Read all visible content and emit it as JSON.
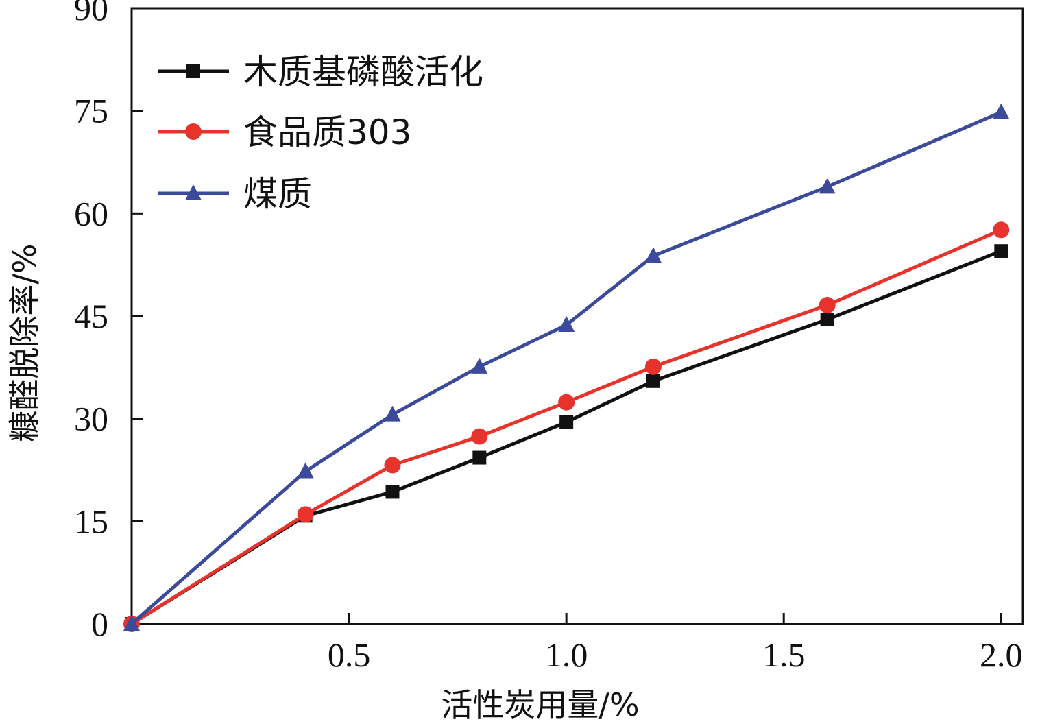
{
  "chart_data": {
    "type": "line",
    "xlabel": "活性炭用量/%",
    "ylabel": "糠醛脱除率/%",
    "xlim": [
      0,
      2.05
    ],
    "ylim": [
      0,
      90
    ],
    "xticks": [
      0.5,
      1.0,
      1.5,
      2.0
    ],
    "xtick_labels": [
      "0.5",
      "1.0",
      "1.5",
      "2.0"
    ],
    "yticks": [
      0,
      15,
      30,
      45,
      60,
      75,
      90
    ],
    "ytick_labels": [
      "0",
      "15",
      "30",
      "45",
      "60",
      "75",
      "90"
    ],
    "legend_position": "top-left",
    "grid": false,
    "x": [
      0,
      0.4,
      0.6,
      0.8,
      1.0,
      1.2,
      1.6,
      2.0
    ],
    "series": [
      {
        "name": "木质基磷酸活化",
        "color": "#111111",
        "marker": "square",
        "values": [
          0,
          15.8,
          19.3,
          24.3,
          29.5,
          35.5,
          44.5,
          54.5
        ]
      },
      {
        "name": "食品质303",
        "color": "#e8322c",
        "marker": "circle",
        "values": [
          0,
          16.0,
          23.2,
          27.4,
          32.4,
          37.6,
          46.6,
          57.6
        ]
      },
      {
        "name": "煤质",
        "color": "#3b4a9a",
        "marker": "triangle",
        "values": [
          0,
          22.3,
          30.6,
          37.6,
          43.7,
          53.8,
          63.9,
          74.8
        ]
      }
    ]
  }
}
